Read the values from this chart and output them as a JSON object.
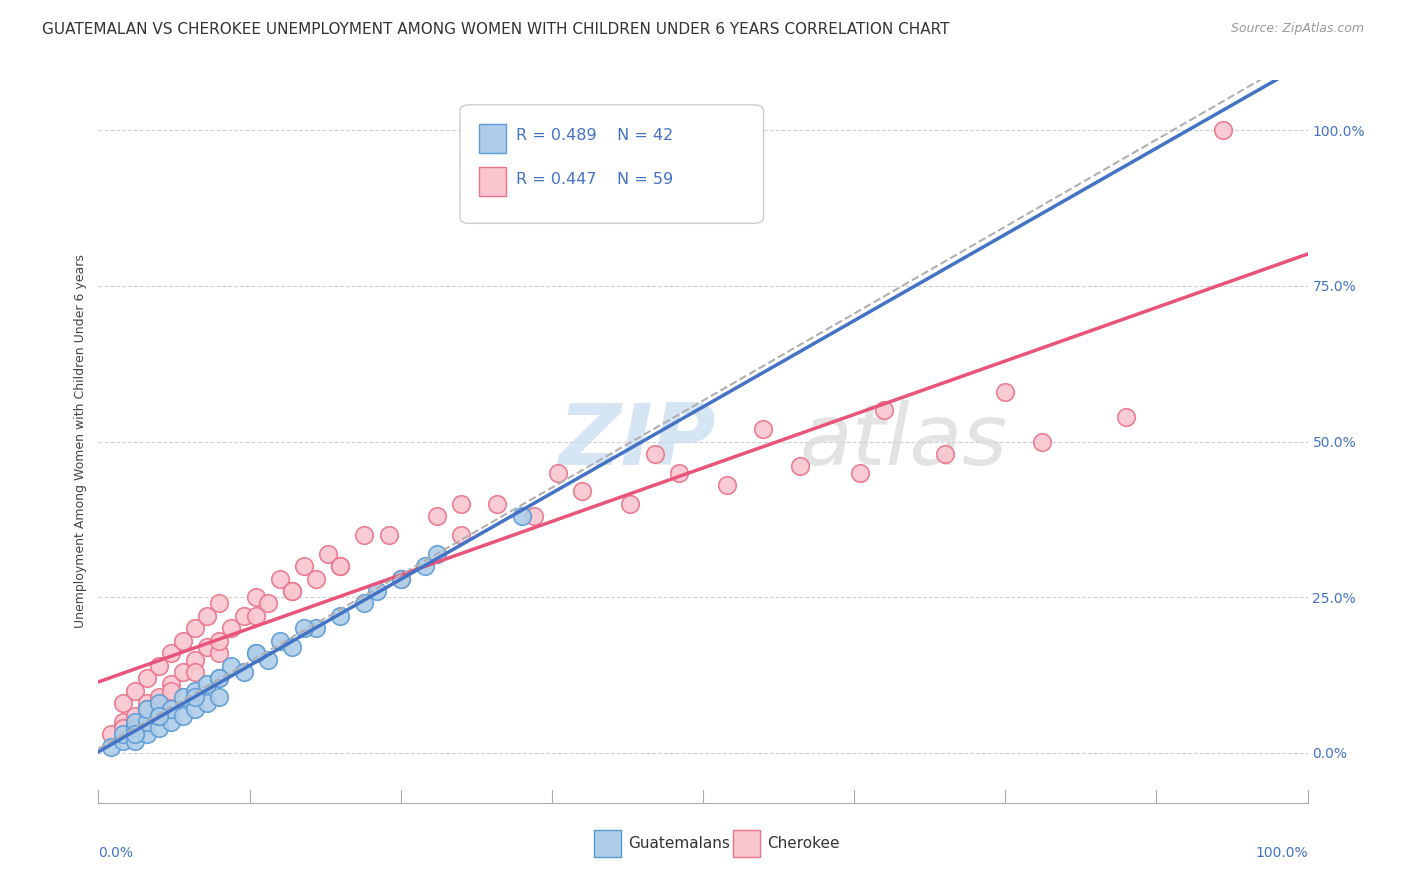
{
  "title": "GUATEMALAN VS CHEROKEE UNEMPLOYMENT AMONG WOMEN WITH CHILDREN UNDER 6 YEARS CORRELATION CHART",
  "source": "Source: ZipAtlas.com",
  "ylabel": "Unemployment Among Women with Children Under 6 years",
  "ytick_labels": [
    "0.0%",
    "25.0%",
    "50.0%",
    "75.0%",
    "100.0%"
  ],
  "ytick_values": [
    0,
    25,
    50,
    75,
    100
  ],
  "xlim": [
    0,
    100
  ],
  "ylim": [
    -8,
    108
  ],
  "legend_label1": "Guatemalans",
  "legend_label2": "Cherokee",
  "R1": 0.489,
  "N1": 42,
  "R2": 0.447,
  "N2": 59,
  "color_blue_fill": "#aecde8",
  "color_blue_edge": "#5b9bd5",
  "color_pink_fill": "#f9c6d0",
  "color_pink_edge": "#e8748a",
  "color_blue_line": "#4472c4",
  "color_pink_line": "#e8547a",
  "color_gray_dashed": "#b0b0b0",
  "watermark_color": "#dce8f5",
  "watermark_color2": "#e0e0e0",
  "background_color": "#ffffff",
  "grid_color": "#d0d0d0",
  "title_fontsize": 11,
  "axis_label_fontsize": 9,
  "tick_fontsize": 10,
  "guatemalan_x": [
    1,
    2,
    2,
    3,
    3,
    3,
    4,
    4,
    4,
    5,
    5,
    5,
    6,
    6,
    7,
    7,
    8,
    8,
    9,
    9,
    10,
    10,
    11,
    12,
    13,
    14,
    15,
    16,
    18,
    20,
    22,
    25,
    28,
    3,
    5,
    8,
    10,
    13,
    17,
    23,
    27,
    35
  ],
  "guatemalan_y": [
    1,
    2,
    3,
    2,
    4,
    5,
    3,
    5,
    7,
    4,
    6,
    8,
    5,
    7,
    6,
    9,
    7,
    10,
    8,
    11,
    9,
    12,
    14,
    13,
    16,
    15,
    18,
    17,
    20,
    22,
    24,
    28,
    32,
    3,
    6,
    9,
    12,
    16,
    20,
    26,
    30,
    38
  ],
  "cherokee_x": [
    1,
    2,
    2,
    3,
    3,
    4,
    4,
    5,
    5,
    6,
    6,
    7,
    7,
    8,
    8,
    9,
    9,
    10,
    10,
    11,
    12,
    13,
    14,
    15,
    16,
    17,
    18,
    19,
    20,
    22,
    25,
    28,
    30,
    33,
    36,
    40,
    44,
    48,
    52,
    58,
    63,
    70,
    78,
    85,
    2,
    4,
    6,
    8,
    10,
    13,
    16,
    20,
    24,
    30,
    38,
    46,
    55,
    65,
    75
  ],
  "cherokee_y": [
    3,
    5,
    8,
    6,
    10,
    8,
    12,
    9,
    14,
    11,
    16,
    13,
    18,
    15,
    20,
    17,
    22,
    16,
    24,
    20,
    22,
    25,
    24,
    28,
    26,
    30,
    28,
    32,
    30,
    35,
    28,
    38,
    35,
    40,
    38,
    42,
    40,
    45,
    43,
    46,
    45,
    48,
    50,
    54,
    4,
    7,
    10,
    13,
    18,
    22,
    26,
    30,
    35,
    40,
    45,
    48,
    52,
    55,
    58
  ],
  "cherokee_outlier_x": [
    93
  ],
  "cherokee_outlier_y": [
    100
  ]
}
